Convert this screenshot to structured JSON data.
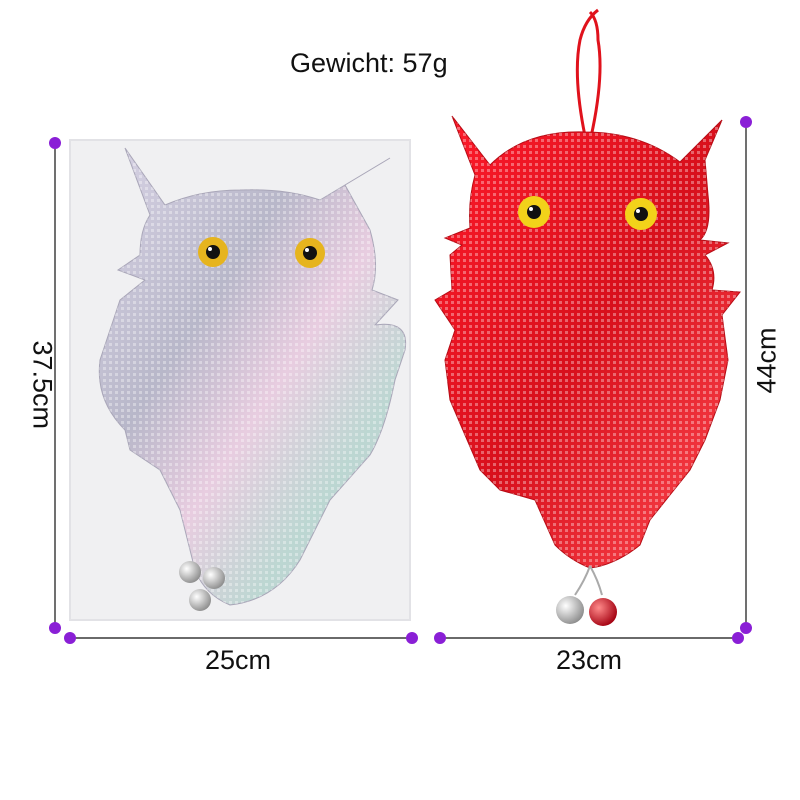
{
  "weight_label": "Gewicht: 57g",
  "left_item": {
    "height_label": "37.5cm",
    "width_label": "25cm"
  },
  "right_item": {
    "height_label": "44cm",
    "width_label": "23cm"
  },
  "colors": {
    "dimension_line": "#111111",
    "dimension_dot": "#8a1fd6",
    "owl_red": "#e0121c",
    "owl_silver": "#c8c4d4",
    "eye_yellow": "#f2d21a"
  }
}
